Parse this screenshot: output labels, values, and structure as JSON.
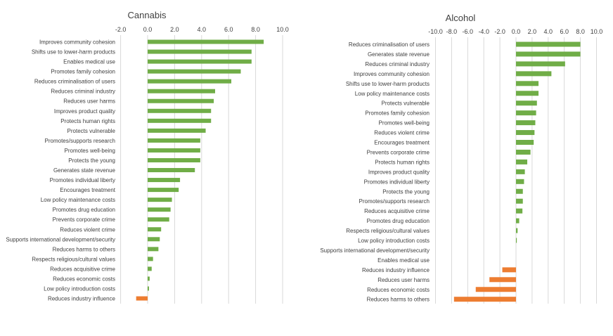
{
  "colors": {
    "positive": "#70ad47",
    "negative": "#ed7d31",
    "grid": "#d9d9d9",
    "text": "#404040"
  },
  "chart_data": [
    {
      "type": "bar",
      "orientation": "horizontal",
      "title": "Cannabis",
      "xlim": [
        -2,
        10
      ],
      "ticks": [
        "-2.0",
        "0.0",
        "2.0",
        "4.0",
        "6.0",
        "8.0",
        "10.0"
      ],
      "grid": true,
      "categories": [
        "Improves community cohesion",
        "Shifts use to lower-harm products",
        "Enables medical use",
        "Promotes family cohesion",
        "Reduces criminalisation of users",
        "Reduces criminal industry",
        "Reduces user harms",
        "Improves product quality",
        "Protects human rights",
        "Protects vulnerable",
        "Promotes/supports research",
        "Promotes well-being",
        "Protects the young",
        "Generates state revenue",
        "Promotes individual liberty",
        "Encourages treatment",
        "Low policy maintenance costs",
        "Promotes drug education",
        "Prevents corporate crime",
        "Reduces violent crime",
        "Supports international development/security",
        "Reduces harms to others",
        "Respects religious/cultural values",
        "Reduces acquisitive crime",
        "Reduces economic costs",
        "Low policy introduction costs",
        "Reduces industry influence"
      ],
      "values": [
        8.6,
        7.7,
        7.7,
        6.9,
        6.2,
        5.0,
        4.9,
        4.7,
        4.7,
        4.3,
        3.9,
        3.9,
        3.9,
        3.5,
        2.4,
        2.3,
        1.8,
        1.7,
        1.6,
        1.0,
        0.9,
        0.8,
        0.4,
        0.3,
        0.15,
        0.1,
        -0.85
      ]
    },
    {
      "type": "bar",
      "orientation": "horizontal",
      "title": "Alcohol",
      "xlim": [
        -10,
        10
      ],
      "ticks": [
        "-10.0",
        "-8.0",
        "-6.0",
        "-4.0",
        "-2.0",
        "0.0",
        "2.0",
        "4.0",
        "6.0",
        "8.0",
        "10.0"
      ],
      "grid": true,
      "categories": [
        "Reduces criminalisation of users",
        "Generates state revenue",
        "Reduces criminal industry",
        "Improves community cohesion",
        "Shifts use to lower-harm products",
        "Low policy maintenance costs",
        "Protects vulnerable",
        "Promotes family cohesion",
        "Promotes well-being",
        "Reduces violent crime",
        "Encourages treatment",
        "Prevents corporate crime",
        "Protects human rights",
        "Improves product quality",
        "Promotes individual liberty",
        "Protects the young",
        "Promotes/supports research",
        "Reduces acquisitive crime",
        "Promotes drug education",
        "Respects religious/cultural values",
        "Low policy introduction costs",
        "Supports international development/security",
        "Enables medical use",
        "Reduces industry influence",
        "Reduces user harms",
        "Reduces economic costs",
        "Reduces harms to others"
      ],
      "values": [
        8.0,
        8.0,
        6.1,
        4.4,
        2.8,
        2.8,
        2.6,
        2.5,
        2.4,
        2.3,
        2.2,
        1.8,
        1.4,
        1.1,
        1.0,
        0.85,
        0.85,
        0.8,
        0.4,
        0.2,
        0.1,
        0.0,
        0.0,
        -1.7,
        -3.3,
        -5.0,
        -7.7
      ]
    }
  ]
}
